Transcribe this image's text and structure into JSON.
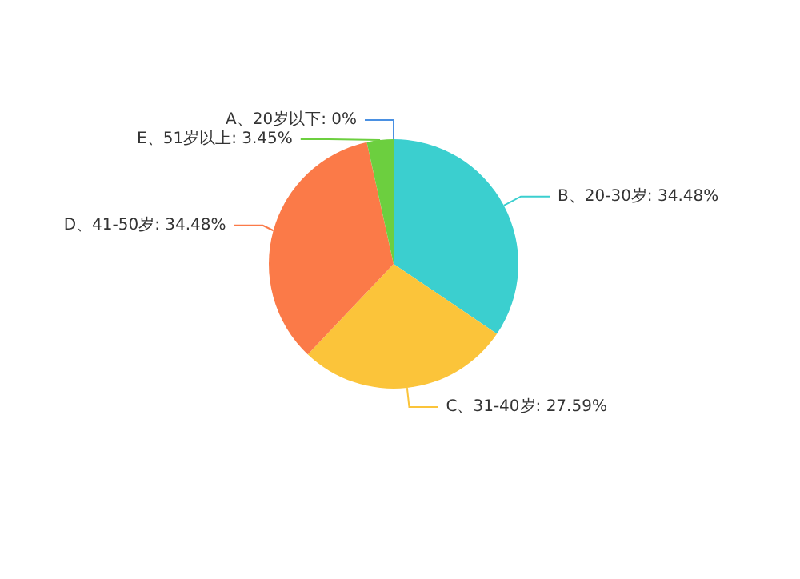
{
  "chart_data": {
    "type": "pie",
    "categories": [
      "A、20岁以下",
      "B、20-30岁",
      "C、31-40岁",
      "D、41-50岁",
      "E、51岁以上"
    ],
    "values": [
      0,
      34.48,
      27.59,
      34.48,
      3.45
    ],
    "value_labels": [
      "0%",
      "34.48%",
      "27.59%",
      "34.48%",
      "3.45%"
    ],
    "colors": [
      "#4a90e2",
      "#3bcfcf",
      "#fbc43a",
      "#fb7a48",
      "#6ccf3f"
    ]
  }
}
